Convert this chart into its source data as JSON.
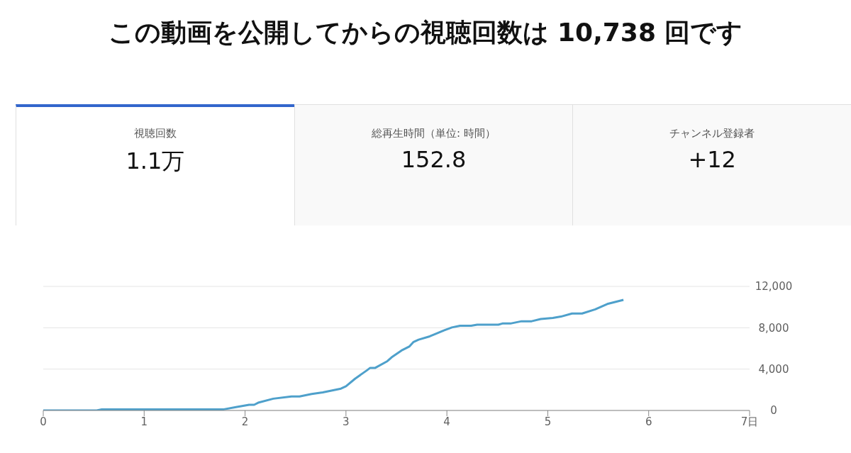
{
  "chart_data": [
    {
      "type": "other",
      "title": "この動画を公開してからの視聴回数は 10,738 回です",
      "annotations": [
        "視聴回数",
        "1.1万",
        "総再生時間（単位: 時間）",
        "152.8",
        "チャンネル登録者",
        "+12"
      ]
    },
    {
      "type": "line",
      "x": [
        0,
        0.53,
        0.58,
        1.79,
        1.91,
        2.04,
        2.09,
        2.13,
        2.28,
        2.46,
        2.54,
        2.66,
        2.77,
        2.95,
        3.0,
        3.09,
        3.21,
        3.24,
        3.29,
        3.41,
        3.46,
        3.55,
        3.63,
        3.67,
        3.72,
        3.83,
        3.89,
        3.97,
        4.05,
        4.13,
        4.24,
        4.3,
        4.51,
        4.55,
        4.63,
        4.74,
        4.84,
        4.93,
        5.05,
        5.13,
        5.24,
        5.34,
        5.47,
        5.59,
        5.75
      ],
      "series": [
        {
          "color": "#4ea0cb",
          "values": [
            0,
            0,
            110,
            110,
            320,
            550,
            550,
            750,
            1140,
            1360,
            1360,
            1590,
            1750,
            2110,
            2340,
            3070,
            3900,
            4120,
            4120,
            4770,
            5200,
            5800,
            6200,
            6630,
            6850,
            7170,
            7410,
            7740,
            8030,
            8190,
            8190,
            8300,
            8300,
            8410,
            8410,
            8630,
            8630,
            8840,
            8950,
            9080,
            9380,
            9380,
            9780,
            10300,
            10700
          ]
        }
      ],
      "xlim": [
        0,
        7
      ],
      "xticks": [
        0,
        1,
        2,
        3,
        4,
        5,
        6,
        {
          "value": 7,
          "label": "7日"
        }
      ],
      "ylim": [
        0,
        12000
      ],
      "yticks": [
        0,
        {
          "value": 4000,
          "label": "4,000"
        },
        {
          "value": 8000,
          "label": "8,000"
        },
        {
          "value": 12000,
          "label": "12,000"
        }
      ],
      "grid": "y",
      "marker": "none",
      "line_style": "solid"
    }
  ]
}
